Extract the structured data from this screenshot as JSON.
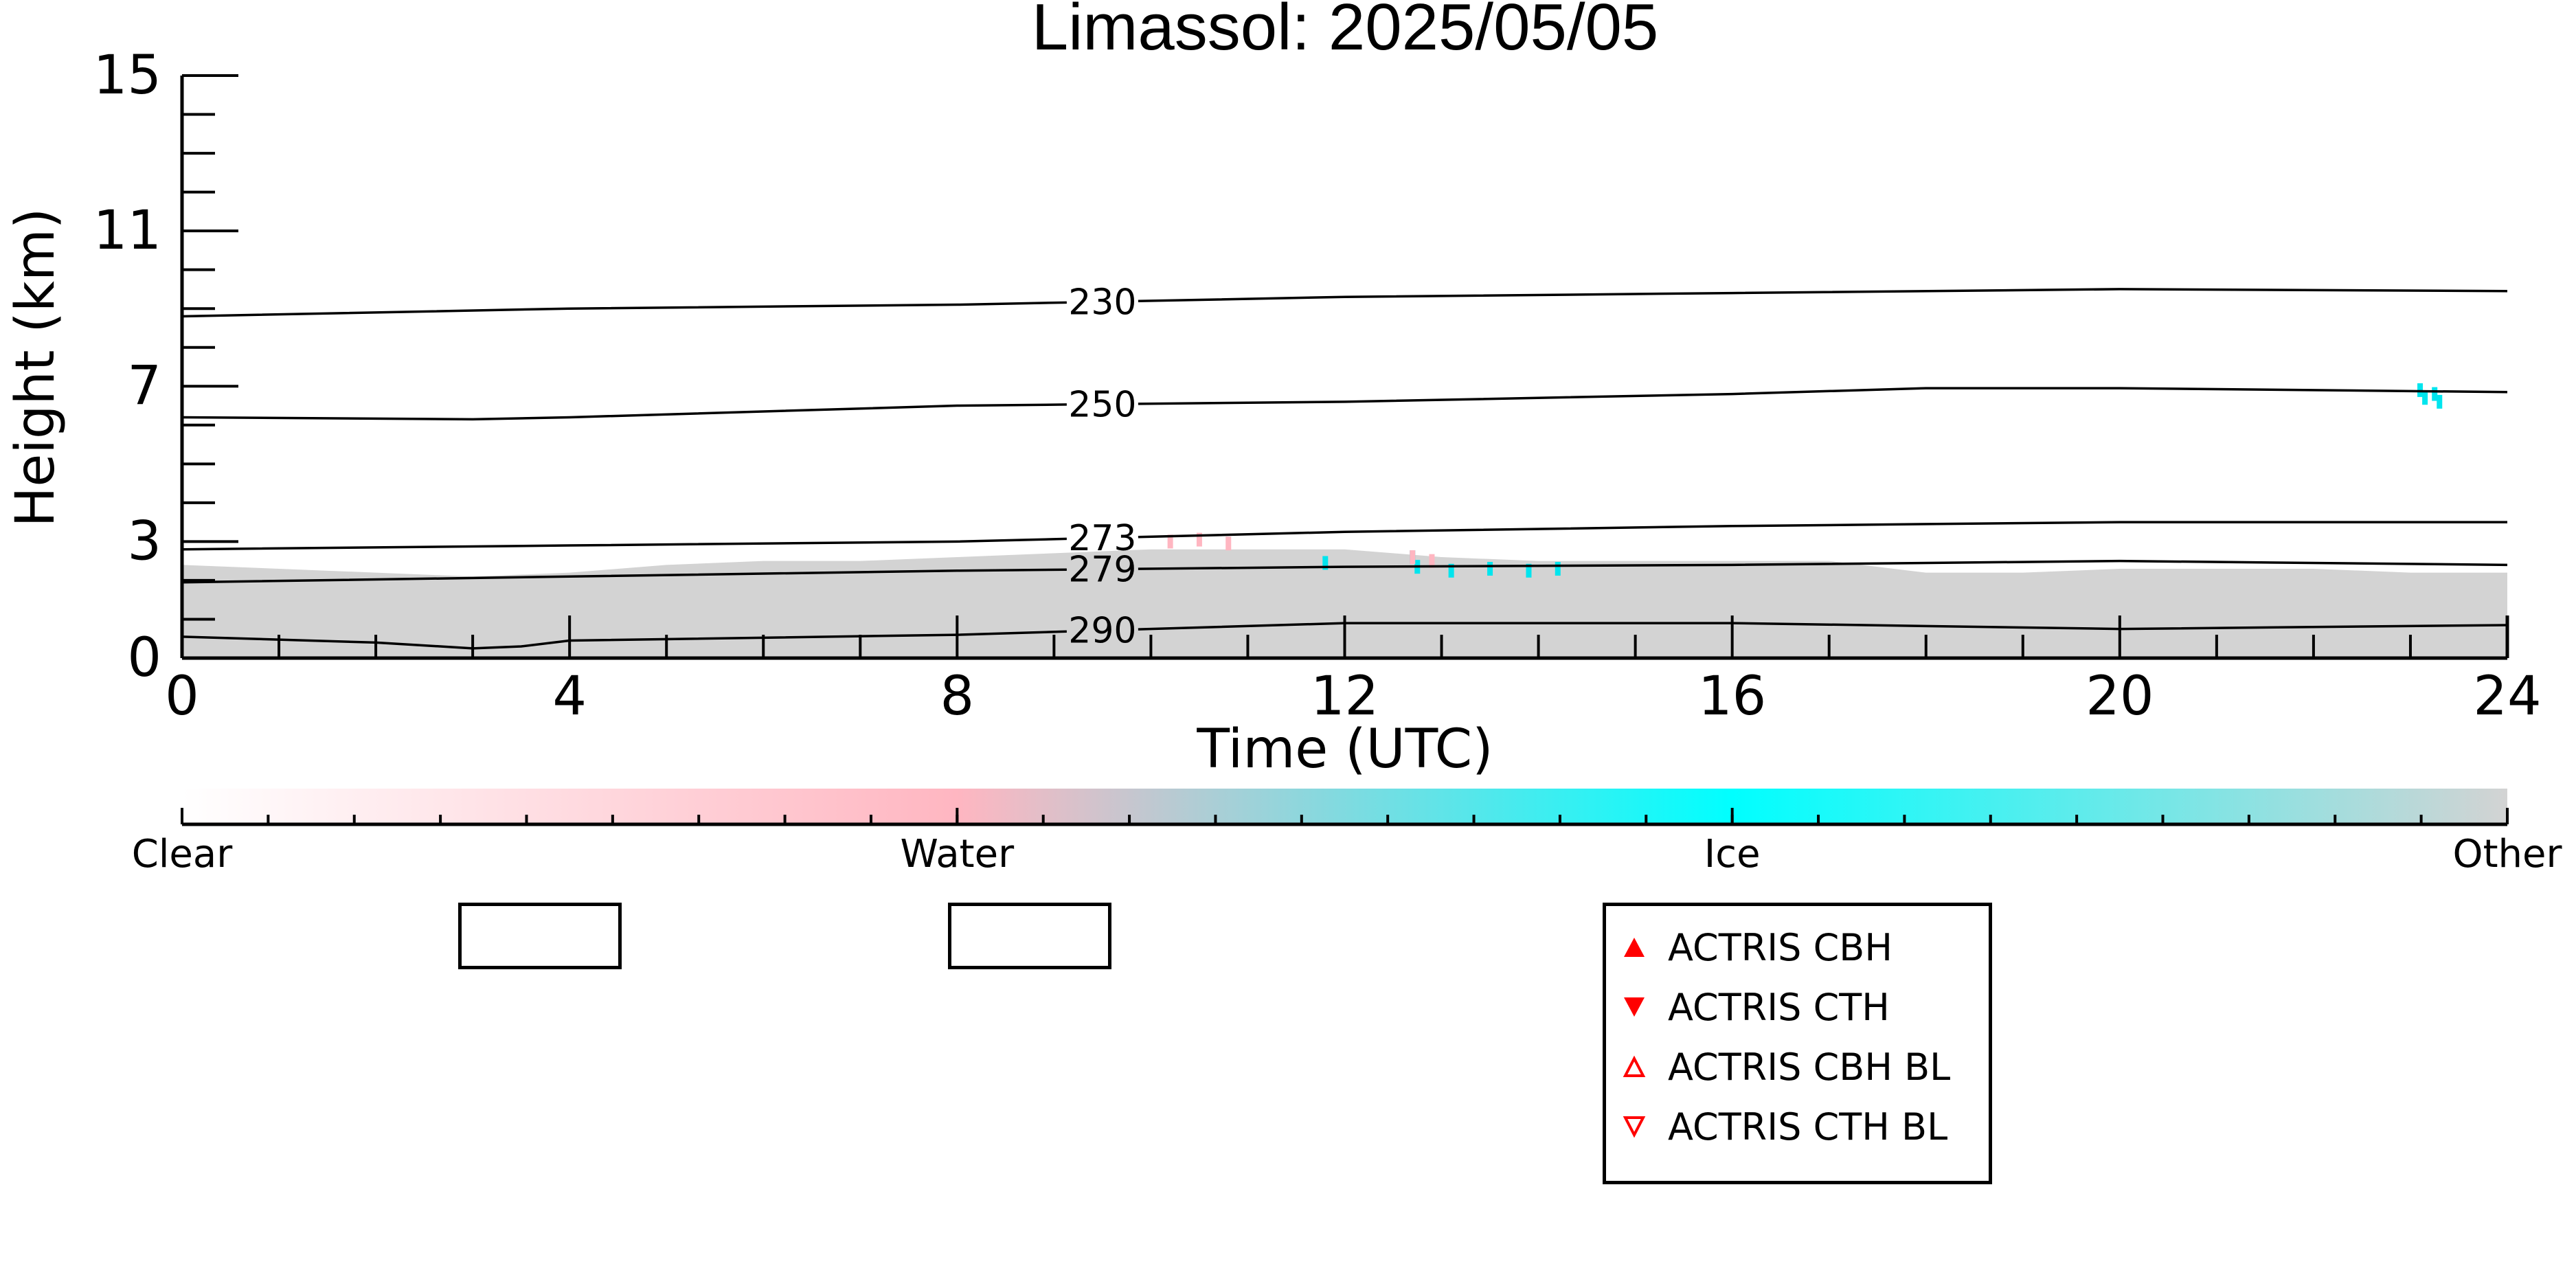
{
  "chart_data": {
    "type": "area",
    "title": "Limassol: 2025/05/05",
    "xlabel": "Time (UTC)",
    "ylabel": "Height (km)",
    "xlim": [
      0,
      24
    ],
    "ylim": [
      0,
      15
    ],
    "x_ticks": [
      0,
      4,
      8,
      12,
      16,
      20,
      24
    ],
    "y_ticks": [
      0,
      3,
      7,
      11,
      15
    ],
    "x_minor_step": 1,
    "y_minor_step": 1,
    "grid": false,
    "series": [
      {
        "type": "area",
        "color": "#d3d3d3",
        "x": [
          0,
          1,
          2,
          3,
          4,
          5,
          6,
          7,
          8,
          9,
          10,
          11,
          12,
          13,
          14,
          15,
          16,
          17,
          18,
          19,
          20,
          21,
          22,
          23,
          24
        ],
        "y": [
          2.4,
          2.3,
          2.2,
          2.1,
          2.2,
          2.4,
          2.5,
          2.5,
          2.6,
          2.7,
          2.8,
          2.8,
          2.8,
          2.6,
          2.5,
          2.5,
          2.5,
          2.5,
          2.2,
          2.2,
          2.3,
          2.3,
          2.3,
          2.2,
          2.2
        ]
      },
      {
        "type": "points",
        "color": "#00e5ee",
        "x": [
          11.8,
          12.7,
          12.75,
          13.1,
          13.5,
          13.9,
          14.2,
          23.1,
          23.15,
          23.25,
          23.3
        ],
        "y": [
          2.45,
          2.6,
          2.35,
          2.25,
          2.3,
          2.25,
          2.3,
          6.9,
          6.7,
          6.8,
          6.6
        ]
      },
      {
        "type": "points",
        "color": "#ffb6c1",
        "x": [
          10.2,
          10.5,
          10.8,
          12.7,
          12.9
        ],
        "y": [
          3.0,
          3.05,
          2.95,
          2.6,
          2.5
        ]
      }
    ],
    "contours": [
      {
        "label": "230",
        "x": [
          0,
          4,
          8,
          12,
          16,
          20,
          24
        ],
        "y": [
          8.8,
          9.0,
          9.1,
          9.3,
          9.4,
          9.5,
          9.45
        ]
      },
      {
        "label": "250",
        "x": [
          0,
          3,
          4,
          8,
          12,
          16,
          18,
          20,
          24
        ],
        "y": [
          6.2,
          6.15,
          6.2,
          6.5,
          6.6,
          6.8,
          6.95,
          6.95,
          6.85
        ]
      },
      {
        "label": "273",
        "x": [
          0,
          4,
          8,
          12,
          16,
          20,
          24
        ],
        "y": [
          2.8,
          2.9,
          3.0,
          3.25,
          3.4,
          3.5,
          3.5
        ]
      },
      {
        "label": "279",
        "x": [
          0,
          4,
          8,
          12,
          16,
          20,
          24
        ],
        "y": [
          1.95,
          2.1,
          2.25,
          2.35,
          2.4,
          2.5,
          2.4
        ]
      },
      {
        "label": "290",
        "x": [
          0,
          2,
          3,
          3.5,
          4,
          8,
          12,
          16,
          20,
          24
        ],
        "y": [
          0.55,
          0.4,
          0.25,
          0.3,
          0.45,
          0.6,
          0.9,
          0.9,
          0.75,
          0.85
        ]
      }
    ],
    "contour_label_x": 9.5,
    "colorbar": {
      "labels": [
        "Clear",
        "Water",
        "Ice",
        "Other"
      ],
      "positions": [
        0,
        1,
        2,
        3
      ],
      "colors": [
        "#ffffff",
        "#ffb6c1",
        "#00ffff",
        "#d3d3d3"
      ]
    },
    "legend": {
      "placement": "bottom-center",
      "entries": [
        {
          "label": "ACTRIS CBH",
          "marker": "triangle-up-filled",
          "color": "#ff0000"
        },
        {
          "label": "ACTRIS CTH",
          "marker": "triangle-down-filled",
          "color": "#ff0000"
        },
        {
          "label": "ACTRIS CBH BL",
          "marker": "triangle-up-open",
          "color": "#ff0000"
        },
        {
          "label": "ACTRIS CTH BL",
          "marker": "triangle-down-open",
          "color": "#ff0000"
        }
      ]
    }
  }
}
